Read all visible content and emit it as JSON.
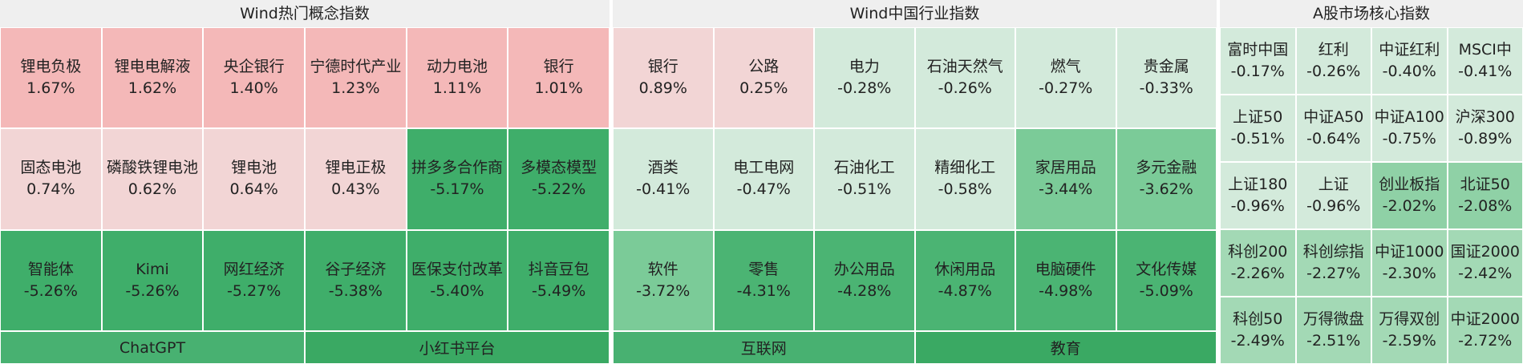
{
  "panels": [
    {
      "title": "Wind热门概念指数",
      "columns": 6,
      "tiles": [
        {
          "name": "锂电负极",
          "value": "1.67%",
          "color": "#f4b8b8"
        },
        {
          "name": "锂电电解液",
          "value": "1.62%",
          "color": "#f4b8b8"
        },
        {
          "name": "央企银行",
          "value": "1.40%",
          "color": "#f4b8b8"
        },
        {
          "name": "宁德时代产业",
          "value": "1.23%",
          "color": "#f4b8b8"
        },
        {
          "name": "动力电池",
          "value": "1.11%",
          "color": "#f4b8b8"
        },
        {
          "name": "银行",
          "value": "1.01%",
          "color": "#f4b8b8"
        },
        {
          "name": "固态电池",
          "value": "0.74%",
          "color": "#f2d5d5"
        },
        {
          "name": "磷酸铁锂电池",
          "value": "0.62%",
          "color": "#f2d5d5"
        },
        {
          "name": "锂电池",
          "value": "0.64%",
          "color": "#f2d5d5"
        },
        {
          "name": "锂电正极",
          "value": "0.43%",
          "color": "#f2d5d5"
        },
        {
          "name": "拼多多合作商",
          "value": "-5.17%",
          "color": "#3fae6a"
        },
        {
          "name": "多模态模型",
          "value": "-5.22%",
          "color": "#3fae6a"
        },
        {
          "name": "智能体",
          "value": "-5.26%",
          "color": "#3fae6a"
        },
        {
          "name": "Kimi",
          "value": "-5.26%",
          "color": "#3fae6a"
        },
        {
          "name": "网红经济",
          "value": "-5.27%",
          "color": "#3fae6a"
        },
        {
          "name": "谷子经济",
          "value": "-5.38%",
          "color": "#3fae6a"
        },
        {
          "name": "医保支付改革",
          "value": "-5.40%",
          "color": "#3fae6a"
        },
        {
          "name": "抖音豆包",
          "value": "-5.49%",
          "color": "#3fae6a"
        }
      ],
      "footer": [
        {
          "label": "ChatGPT",
          "color": "#48b171"
        },
        {
          "label": "小红书平台",
          "color": "#3aa963"
        }
      ]
    },
    {
      "title": "Wind中国行业指数",
      "columns": 6,
      "tiles": [
        {
          "name": "银行",
          "value": "0.89%",
          "color": "#f2d5d5"
        },
        {
          "name": "公路",
          "value": "0.25%",
          "color": "#f2d5d5"
        },
        {
          "name": "电力",
          "value": "-0.28%",
          "color": "#d3eadb"
        },
        {
          "name": "石油天然气",
          "value": "-0.26%",
          "color": "#d3eadb"
        },
        {
          "name": "燃气",
          "value": "-0.27%",
          "color": "#d3eadb"
        },
        {
          "name": "贵金属",
          "value": "-0.33%",
          "color": "#d3eadb"
        },
        {
          "name": "酒类",
          "value": "-0.41%",
          "color": "#d3eadb"
        },
        {
          "name": "电工电网",
          "value": "-0.47%",
          "color": "#d3eadb"
        },
        {
          "name": "石油化工",
          "value": "-0.51%",
          "color": "#d3eadb"
        },
        {
          "name": "精细化工",
          "value": "-0.58%",
          "color": "#d3eadb"
        },
        {
          "name": "家居用品",
          "value": "-3.44%",
          "color": "#7bcb98"
        },
        {
          "name": "多元金融",
          "value": "-3.62%",
          "color": "#7bcb98"
        },
        {
          "name": "软件",
          "value": "-3.72%",
          "color": "#7bcb98"
        },
        {
          "name": "零售",
          "value": "-4.31%",
          "color": "#4bb473"
        },
        {
          "name": "办公用品",
          "value": "-4.28%",
          "color": "#4bb473"
        },
        {
          "name": "休闲用品",
          "value": "-4.87%",
          "color": "#4bb473"
        },
        {
          "name": "电脑硬件",
          "value": "-4.98%",
          "color": "#4bb473"
        },
        {
          "name": "文化传媒",
          "value": "-5.09%",
          "color": "#4bb473"
        }
      ],
      "footer": [
        {
          "label": "互联网",
          "color": "#48b171"
        },
        {
          "label": "教育",
          "color": "#3aa963"
        }
      ]
    },
    {
      "title": "A股市场核心指数",
      "columns": 4,
      "tiles": [
        {
          "name": "富时中国",
          "value": "-0.17%",
          "color": "#d3eadb"
        },
        {
          "name": "红利",
          "value": "-0.26%",
          "color": "#d3eadb"
        },
        {
          "name": "中证红利",
          "value": "-0.40%",
          "color": "#d3eadb"
        },
        {
          "name": "MSCI中",
          "value": "-0.41%",
          "color": "#d3eadb"
        },
        {
          "name": "上证50",
          "value": "-0.51%",
          "color": "#d3eadb"
        },
        {
          "name": "中证A50",
          "value": "-0.64%",
          "color": "#d3eadb"
        },
        {
          "name": "中证A100",
          "value": "-0.75%",
          "color": "#d3eadb"
        },
        {
          "name": "沪深300",
          "value": "-0.89%",
          "color": "#d3eadb"
        },
        {
          "name": "上证180",
          "value": "-0.96%",
          "color": "#d3eadb"
        },
        {
          "name": "上证",
          "value": "-0.96%",
          "color": "#d3eadb"
        },
        {
          "name": "创业板指",
          "value": "-2.02%",
          "color": "#8fd1a6"
        },
        {
          "name": "北证50",
          "value": "-2.08%",
          "color": "#8fd1a6"
        },
        {
          "name": "科创200",
          "value": "-2.26%",
          "color": "#a3d9b5"
        },
        {
          "name": "科创综指",
          "value": "-2.27%",
          "color": "#a3d9b5"
        },
        {
          "name": "中证1000",
          "value": "-2.30%",
          "color": "#a3d9b5"
        },
        {
          "name": "国证2000",
          "value": "-2.42%",
          "color": "#a3d9b5"
        },
        {
          "name": "科创50",
          "value": "-2.49%",
          "color": "#a3d9b5"
        },
        {
          "name": "万得微盘",
          "value": "-2.51%",
          "color": "#a3d9b5"
        },
        {
          "name": "万得双创",
          "value": "-2.59%",
          "color": "#a3d9b5"
        },
        {
          "name": "中证2000",
          "value": "-2.72%",
          "color": "#a3d9b5"
        }
      ]
    }
  ]
}
